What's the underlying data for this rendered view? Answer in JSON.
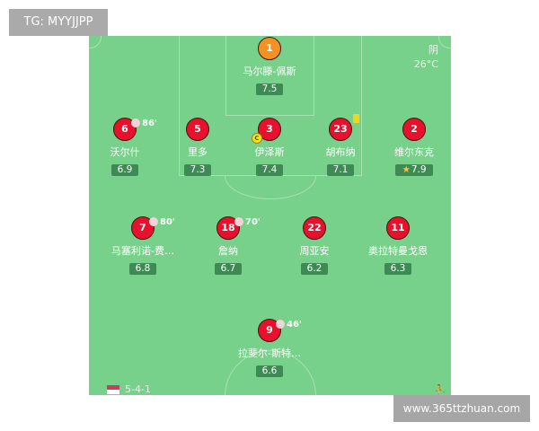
{
  "watermark_top": "TG: MYYJJPP",
  "watermark_bottom": "www.365ttzhuan.com",
  "weather": {
    "condition": "阴",
    "temperature": "26°C"
  },
  "formation": "5-4-1",
  "colors": {
    "pitch": "#78d18a",
    "player": "#e8112d",
    "goalkeeper": "#f39124",
    "rating_bg": "#3e8a55"
  },
  "players": [
    {
      "number": "1",
      "name": "马尔滕-佩斯",
      "rating": "7.5"
    },
    {
      "number": "6",
      "name": "沃尔什",
      "rating": "6.9",
      "sub": "86'"
    },
    {
      "number": "5",
      "name": "里多",
      "rating": "7.3"
    },
    {
      "number": "3",
      "name": "伊泽斯",
      "rating": "7.4",
      "captain": "C"
    },
    {
      "number": "23",
      "name": "胡布纳",
      "rating": "7.1",
      "yellow_card": true
    },
    {
      "number": "2",
      "name": "维尔东克",
      "rating": "7.9",
      "best": true
    },
    {
      "number": "7",
      "name": "马塞利诺-费…",
      "rating": "6.8",
      "sub": "80'"
    },
    {
      "number": "18",
      "name": "詹纳",
      "rating": "6.7",
      "sub": "70'"
    },
    {
      "number": "22",
      "name": "周亚安",
      "rating": "6.2"
    },
    {
      "number": "11",
      "name": "奥拉特曼戈恩",
      "rating": "6.3"
    },
    {
      "number": "9",
      "name": "拉斐尔-斯特…",
      "rating": "6.6",
      "sub": "46'"
    }
  ]
}
